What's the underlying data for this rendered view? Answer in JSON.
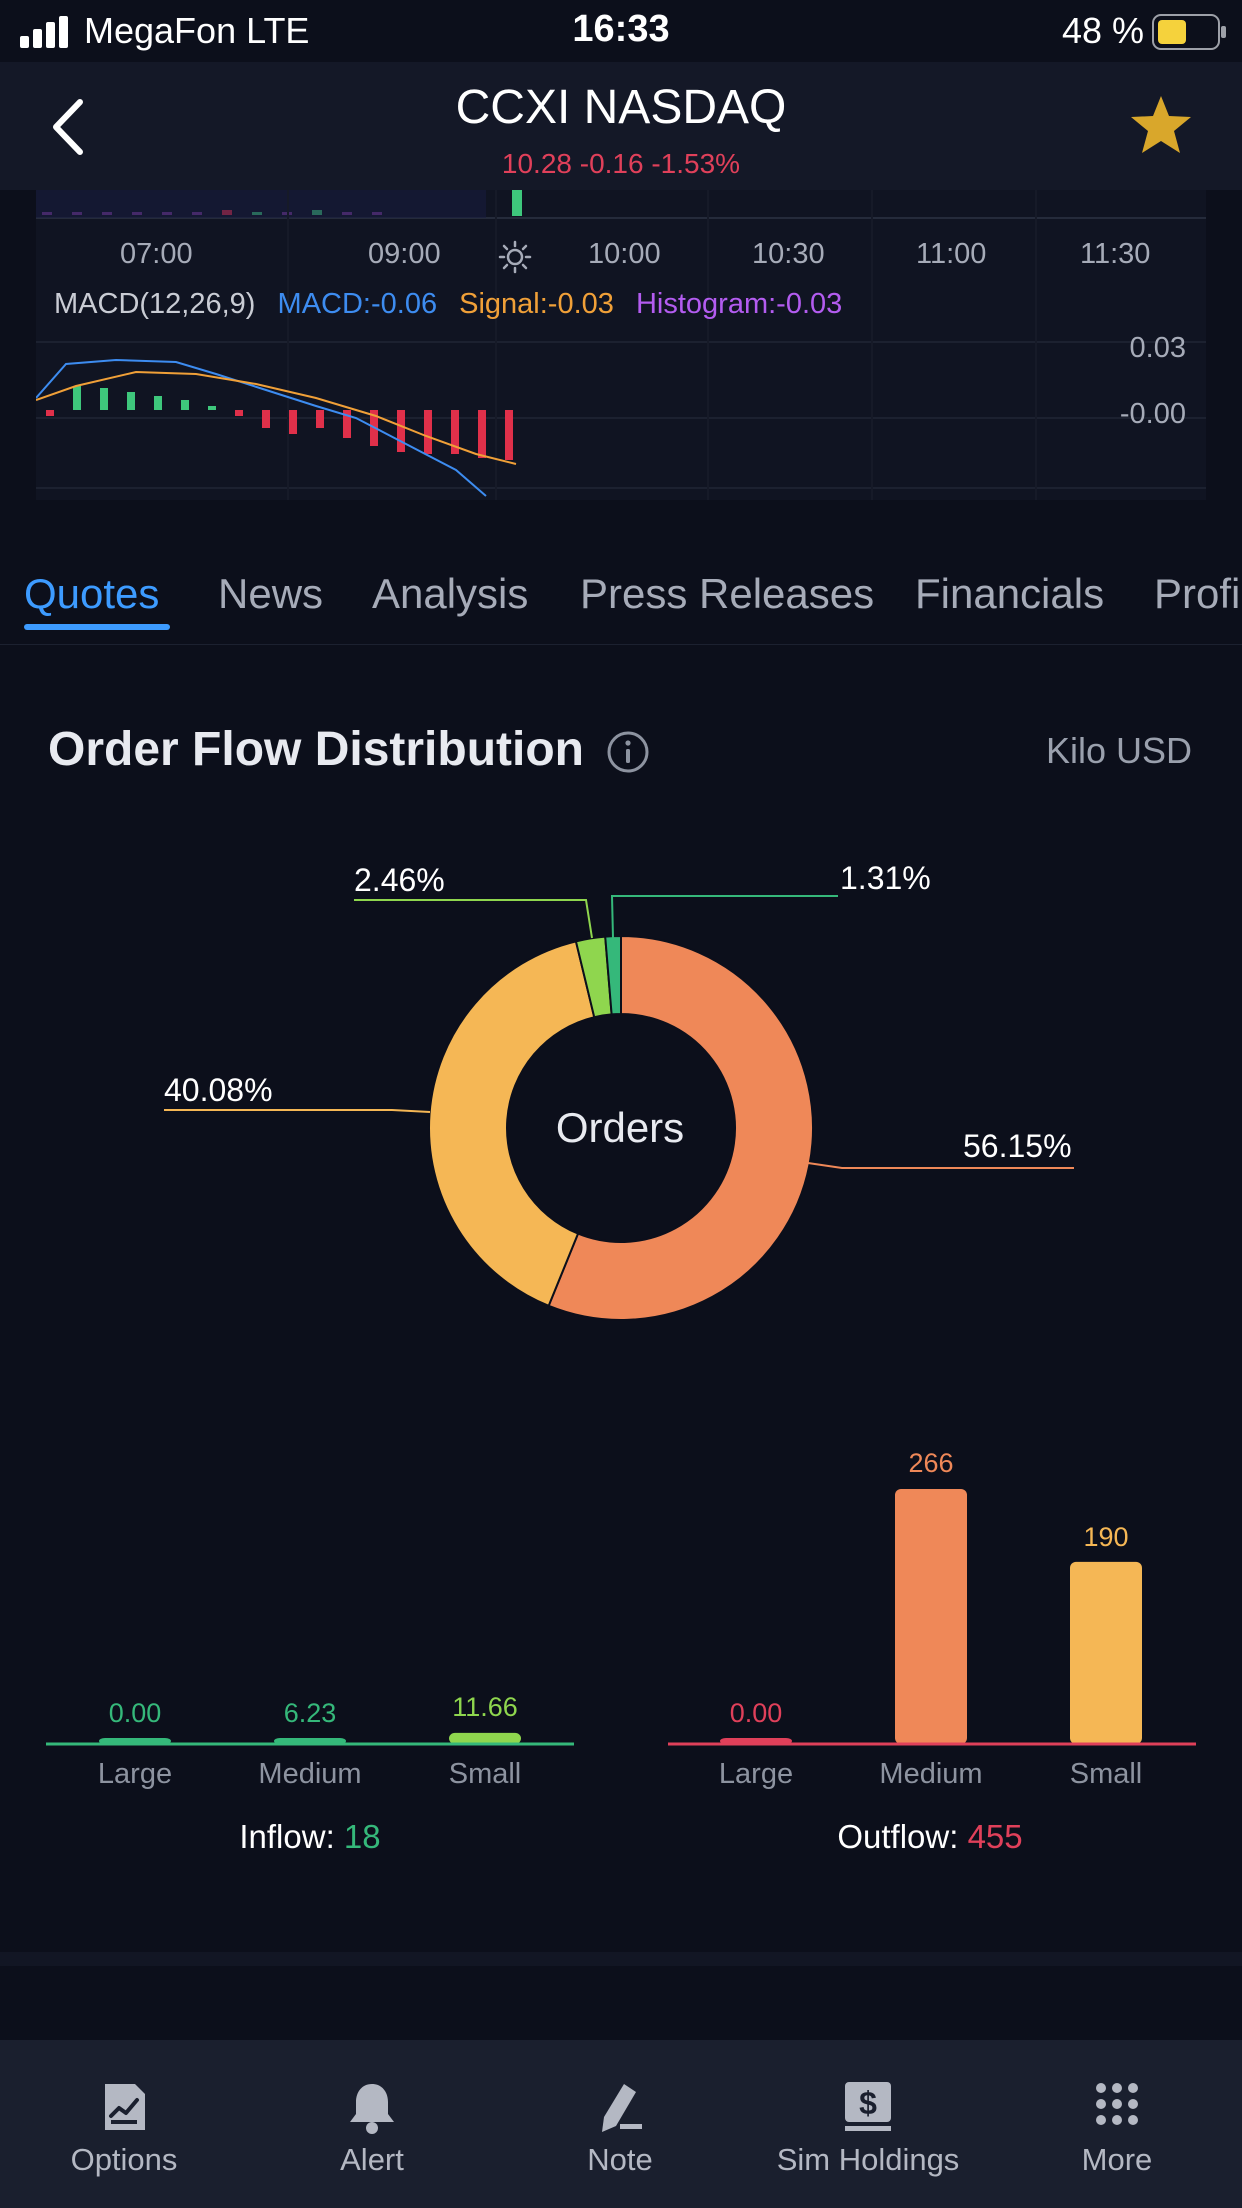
{
  "status_bar": {
    "carrier": "MegaFon  LTE",
    "time": "16:33",
    "battery": "48 %"
  },
  "header": {
    "title": "CCXI NASDAQ",
    "quote": "10.28 -0.16 -1.53%"
  },
  "chart": {
    "time_ticks": [
      "07:00",
      "09:00",
      "10:00",
      "10:30",
      "11:00",
      "11:30"
    ],
    "macd_name": "MACD(12,26,9)",
    "macd": "MACD:-0.06",
    "signal": "Signal:-0.03",
    "histogram": "Histogram:-0.03",
    "y_ticks": [
      "0.03",
      "-0.00"
    ],
    "colors": {
      "macd": "#3d8cf0",
      "signal": "#f0a038",
      "histogram": "#b35cf0",
      "up": "#3ec77c",
      "down": "#e0304a"
    }
  },
  "tabs": [
    {
      "label": "Quotes",
      "active": true
    },
    {
      "label": "News"
    },
    {
      "label": "Analysis"
    },
    {
      "label": "Press Releases"
    },
    {
      "label": "Financials"
    },
    {
      "label": "Profi"
    }
  ],
  "order_flow": {
    "title": "Order Flow Distribution",
    "unit": "Kilo USD",
    "center_label": "Orders",
    "inflow_label": "Inflow: ",
    "inflow_value": "18",
    "outflow_label": "Outflow: ",
    "outflow_value": "455"
  },
  "chart_data": [
    {
      "type": "pie",
      "categories": [
        "Medium outflow",
        "Small outflow",
        "Small inflow",
        "Medium inflow"
      ],
      "values": [
        56.15,
        40.08,
        2.46,
        1.31
      ],
      "labels": [
        "56.15%",
        "40.08%",
        "2.46%",
        "1.31%"
      ],
      "colors": [
        "#ef8858",
        "#f5b755",
        "#8fd64e",
        "#35b87a"
      ]
    },
    {
      "type": "bar",
      "title": "",
      "categories": [
        "Large",
        "Medium",
        "Small"
      ],
      "values": [
        0.0,
        6.23,
        11.66
      ],
      "labels": [
        "0.00",
        "6.23",
        "11.66"
      ],
      "colors": [
        "#35b87a",
        "#35b87a",
        "#8fd64e"
      ]
    },
    {
      "type": "bar",
      "title": "",
      "categories": [
        "Large",
        "Medium",
        "Small"
      ],
      "values": [
        0.0,
        266,
        190
      ],
      "labels": [
        "0.00",
        "266",
        "190"
      ],
      "colors": [
        "#e0405a",
        "#ef8858",
        "#f5b755"
      ]
    }
  ],
  "bottom_nav": [
    {
      "label": "Options",
      "icon": "options-chart-icon"
    },
    {
      "label": "Alert",
      "icon": "bell-icon"
    },
    {
      "label": "Note",
      "icon": "pen-icon"
    },
    {
      "label": "Sim Holdings",
      "icon": "dollar-doc-icon"
    },
    {
      "label": "More",
      "icon": "grid-dots-icon"
    }
  ]
}
